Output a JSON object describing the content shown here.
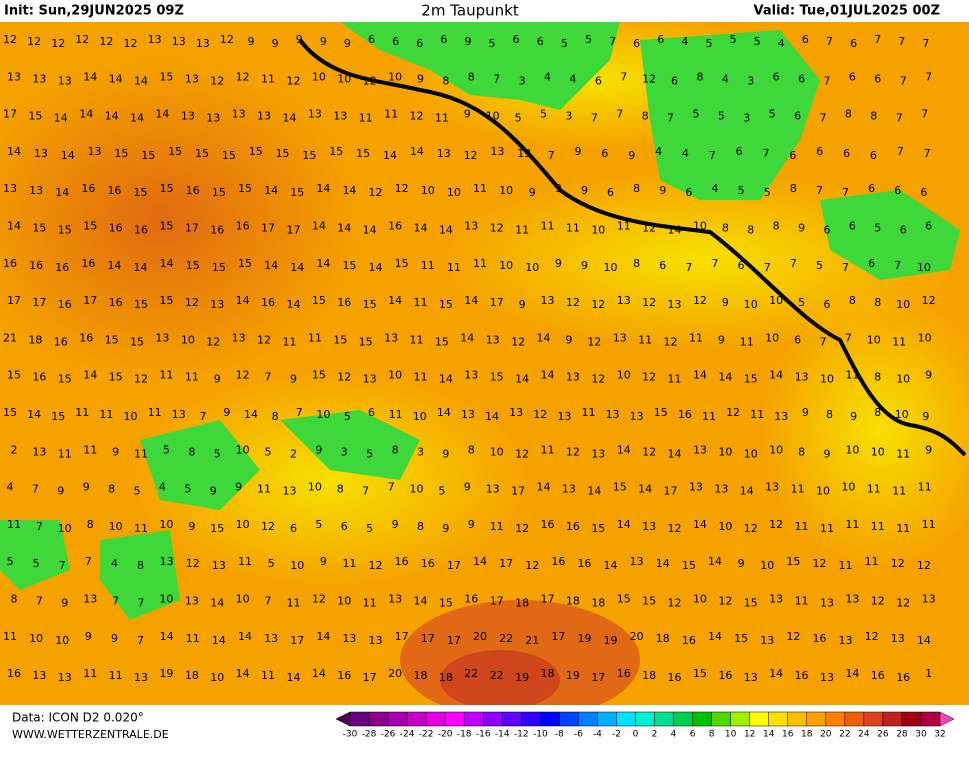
{
  "header": {
    "init": "Init: Sun,29JUN2025 09Z",
    "title": "2m Taupunkt",
    "valid": "Valid: Tue,01JUL2025 00Z"
  },
  "map": {
    "rows": [
      [
        12,
        12,
        12,
        12,
        12,
        12,
        13,
        13,
        13,
        12,
        9,
        9,
        9,
        9,
        9,
        6,
        6,
        6,
        6,
        9,
        5,
        6,
        6,
        5,
        5,
        7,
        6,
        6,
        4,
        5,
        5,
        5,
        4,
        6,
        7,
        6,
        7,
        7,
        7
      ],
      [
        13,
        13,
        13,
        14,
        14,
        14,
        15,
        13,
        12,
        12,
        11,
        12,
        10,
        10,
        12,
        10,
        9,
        8,
        8,
        7,
        3,
        4,
        4,
        6,
        7,
        12,
        6,
        8,
        4,
        3,
        6,
        6,
        7,
        6,
        6,
        7,
        7
      ],
      [
        17,
        15,
        14,
        14,
        14,
        14,
        14,
        13,
        13,
        13,
        13,
        14,
        13,
        13,
        11,
        11,
        12,
        11,
        9,
        10,
        5,
        5,
        3,
        7,
        7,
        8,
        7,
        5,
        5,
        3,
        5,
        6,
        7,
        8,
        8,
        7,
        7
      ],
      [
        14,
        13,
        14,
        13,
        15,
        15,
        15,
        15,
        15,
        15,
        15,
        15,
        15,
        15,
        14,
        14,
        13,
        12,
        13,
        13,
        7,
        9,
        6,
        9,
        4,
        4,
        7,
        6,
        7,
        6,
        6,
        6,
        6,
        7,
        7
      ],
      [
        13,
        13,
        14,
        16,
        16,
        15,
        15,
        16,
        15,
        15,
        14,
        15,
        14,
        14,
        12,
        12,
        10,
        10,
        11,
        10,
        9,
        9,
        9,
        6,
        8,
        9,
        6,
        4,
        5,
        5,
        8,
        7,
        7,
        6,
        6,
        6
      ],
      [
        14,
        15,
        15,
        15,
        16,
        16,
        15,
        17,
        16,
        16,
        17,
        17,
        14,
        14,
        14,
        16,
        14,
        14,
        13,
        12,
        11,
        11,
        11,
        10,
        11,
        12,
        14,
        10,
        8,
        8,
        8,
        9,
        6,
        6,
        5,
        6,
        6
      ],
      [
        16,
        16,
        16,
        16,
        14,
        14,
        14,
        15,
        15,
        15,
        14,
        14,
        14,
        15,
        14,
        15,
        11,
        11,
        11,
        10,
        10,
        9,
        9,
        10,
        8,
        6,
        7,
        7,
        6,
        7,
        7,
        5,
        7,
        6,
        7,
        10
      ],
      [
        17,
        17,
        16,
        17,
        16,
        15,
        15,
        12,
        13,
        14,
        16,
        14,
        15,
        16,
        15,
        14,
        11,
        15,
        14,
        17,
        9,
        13,
        12,
        12,
        13,
        12,
        13,
        12,
        9,
        10,
        10,
        5,
        6,
        8,
        8,
        10,
        12
      ],
      [
        21,
        18,
        16,
        16,
        15,
        15,
        13,
        10,
        12,
        13,
        12,
        11,
        11,
        15,
        15,
        13,
        11,
        15,
        14,
        13,
        12,
        14,
        9,
        12,
        13,
        11,
        12,
        11,
        9,
        11,
        10,
        6,
        7,
        7,
        10,
        11,
        10
      ],
      [
        15,
        16,
        15,
        14,
        15,
        12,
        11,
        11,
        9,
        12,
        7,
        9,
        15,
        12,
        13,
        10,
        11,
        14,
        13,
        15,
        14,
        14,
        13,
        12,
        10,
        12,
        11,
        14,
        14,
        15,
        14,
        13,
        10,
        11,
        8,
        10,
        9
      ],
      [
        15,
        14,
        15,
        11,
        11,
        10,
        11,
        13,
        7,
        9,
        14,
        8,
        7,
        10,
        5,
        6,
        11,
        10,
        14,
        13,
        14,
        13,
        12,
        13,
        11,
        13,
        13,
        15,
        16,
        11,
        12,
        11,
        13,
        9,
        8,
        9,
        8,
        10,
        9
      ],
      [
        2,
        13,
        11,
        11,
        9,
        11,
        5,
        8,
        5,
        10,
        5,
        2,
        9,
        3,
        5,
        8,
        3,
        9,
        8,
        10,
        12,
        11,
        12,
        13,
        14,
        12,
        14,
        13,
        10,
        10,
        10,
        8,
        9,
        10,
        10,
        11,
        9
      ],
      [
        4,
        7,
        9,
        9,
        8,
        5,
        4,
        5,
        9,
        9,
        11,
        13,
        10,
        8,
        7,
        7,
        10,
        5,
        9,
        13,
        17,
        14,
        13,
        14,
        15,
        14,
        17,
        13,
        13,
        14,
        13,
        11,
        10,
        10,
        11,
        11,
        11
      ],
      [
        11,
        7,
        10,
        8,
        10,
        11,
        10,
        9,
        15,
        10,
        12,
        6,
        5,
        6,
        5,
        9,
        8,
        9,
        9,
        11,
        12,
        16,
        16,
        15,
        14,
        13,
        12,
        14,
        10,
        12,
        12,
        11,
        11,
        11,
        11,
        11,
        11
      ],
      [
        5,
        5,
        7,
        7,
        4,
        8,
        13,
        12,
        13,
        11,
        5,
        10,
        9,
        11,
        12,
        16,
        16,
        17,
        14,
        17,
        12,
        16,
        16,
        14,
        13,
        14,
        15,
        14,
        9,
        10,
        15,
        12,
        11,
        11,
        12,
        12
      ],
      [
        8,
        7,
        9,
        13,
        7,
        7,
        10,
        13,
        14,
        10,
        7,
        11,
        12,
        10,
        11,
        13,
        14,
        15,
        16,
        17,
        18,
        17,
        18,
        18,
        15,
        15,
        12,
        10,
        12,
        15,
        13,
        11,
        13,
        13,
        12,
        12,
        13
      ],
      [
        11,
        10,
        10,
        9,
        9,
        7,
        14,
        11,
        14,
        14,
        13,
        17,
        14,
        13,
        13,
        17,
        17,
        17,
        20,
        22,
        21,
        17,
        19,
        19,
        20,
        18,
        16,
        14,
        15,
        13,
        12,
        16,
        13,
        12,
        13,
        14
      ],
      [
        16,
        13,
        13,
        11,
        11,
        13,
        19,
        18,
        10,
        14,
        11,
        14,
        14,
        16,
        17,
        20,
        18,
        18,
        22,
        22,
        19,
        18,
        19,
        17,
        16,
        18,
        16,
        15,
        16,
        13,
        14,
        16,
        13,
        14,
        16,
        16,
        1
      ]
    ]
  },
  "legend": {
    "ticks": [
      -30,
      -28,
      -26,
      -24,
      -22,
      -20,
      -18,
      -16,
      -14,
      -12,
      -10,
      -8,
      -6,
      -4,
      -2,
      0,
      2,
      4,
      6,
      8,
      10,
      12,
      14,
      16,
      18,
      20,
      22,
      24,
      26,
      28,
      30,
      32
    ],
    "colors": [
      "#4b0050",
      "#6a0080",
      "#8b008b",
      "#a800b0",
      "#c800c8",
      "#e400e4",
      "#ff00ff",
      "#c000ff",
      "#9000ff",
      "#6000ff",
      "#3000ff",
      "#0000ff",
      "#0040ff",
      "#0080ff",
      "#00b0ff",
      "#00e0ff",
      "#00f0d0",
      "#00e090",
      "#00d050",
      "#00c000",
      "#50d800",
      "#a0f000",
      "#ffff00",
      "#ffe000",
      "#ffc000",
      "#ffa000",
      "#ff8000",
      "#f06000",
      "#e04020",
      "#c02020",
      "#a00010",
      "#b00040",
      "#d00080",
      "#ff40c0"
    ]
  },
  "footer": {
    "source": "Data: ICON D2 0.020°",
    "site": "WWW.WETTERZENTRALE.DE"
  }
}
